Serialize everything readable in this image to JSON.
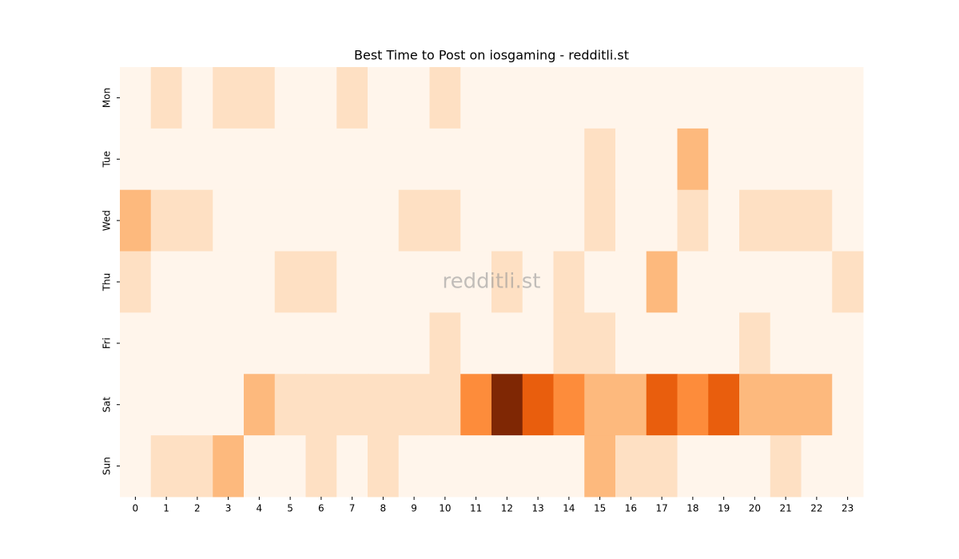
{
  "chart_data": {
    "type": "heatmap",
    "title": "Best Time to Post on iosgaming - redditli.st",
    "watermark": "redditli.st",
    "x_categories": [
      "0",
      "1",
      "2",
      "3",
      "4",
      "5",
      "6",
      "7",
      "8",
      "9",
      "10",
      "11",
      "12",
      "13",
      "14",
      "15",
      "16",
      "17",
      "18",
      "19",
      "20",
      "21",
      "22",
      "23"
    ],
    "y_categories": [
      "Mon",
      "Tue",
      "Wed",
      "Thu",
      "Fri",
      "Sat",
      "Sun"
    ],
    "values": [
      [
        0,
        1,
        0,
        1,
        1,
        0,
        0,
        1,
        0,
        0,
        1,
        0,
        0,
        0,
        0,
        0,
        0,
        0,
        0,
        0,
        0,
        0,
        0,
        0
      ],
      [
        0,
        0,
        0,
        0,
        0,
        0,
        0,
        0,
        0,
        0,
        0,
        0,
        0,
        0,
        0,
        1,
        0,
        0,
        2,
        0,
        0,
        0,
        0,
        0
      ],
      [
        2,
        1,
        1,
        0,
        0,
        0,
        0,
        0,
        0,
        1,
        1,
        0,
        0,
        0,
        0,
        1,
        0,
        0,
        1,
        0,
        1,
        1,
        1,
        0
      ],
      [
        1,
        0,
        0,
        0,
        0,
        1,
        1,
        0,
        0,
        0,
        0,
        0,
        1,
        0,
        1,
        0,
        0,
        2,
        0,
        0,
        0,
        0,
        0,
        1
      ],
      [
        0,
        0,
        0,
        0,
        0,
        0,
        0,
        0,
        0,
        0,
        1,
        0,
        0,
        0,
        1,
        1,
        0,
        0,
        0,
        0,
        1,
        0,
        0,
        0
      ],
      [
        0,
        0,
        0,
        0,
        2,
        1,
        1,
        1,
        1,
        1,
        1,
        3,
        5,
        4,
        3,
        2,
        2,
        4,
        3,
        4,
        2,
        2,
        2,
        0
      ],
      [
        0,
        1,
        1,
        2,
        0,
        0,
        1,
        0,
        1,
        0,
        0,
        0,
        0,
        0,
        0,
        2,
        1,
        1,
        0,
        0,
        0,
        1,
        0,
        0
      ]
    ],
    "zlim": [
      0,
      5
    ],
    "colorscale": [
      "#fff5eb",
      "#fee0c3",
      "#fdb97d",
      "#fd8c3b",
      "#e95e0d",
      "#7f2704"
    ]
  }
}
